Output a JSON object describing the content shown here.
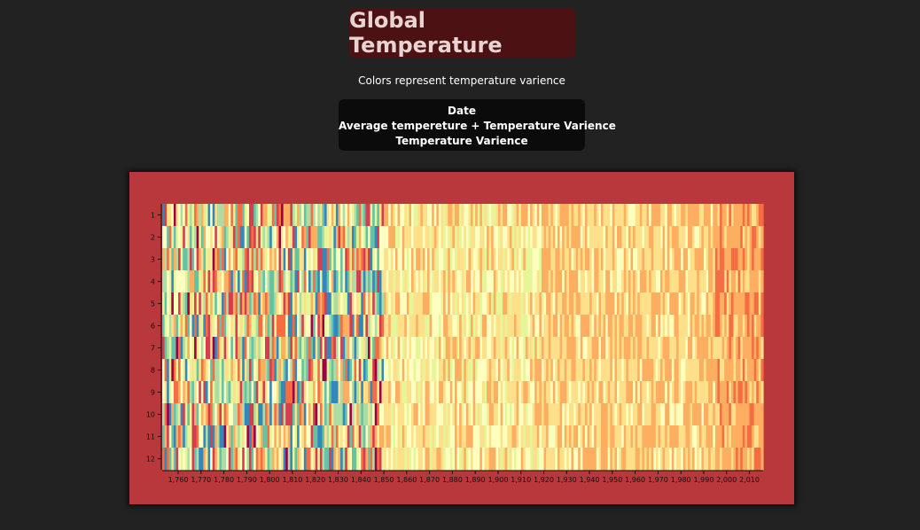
{
  "header": {
    "title": "Global Temperature",
    "subtitle": "Colors represent temperature varience"
  },
  "tooltip": {
    "line1": "Date",
    "line2": "Average tempereture + Temperature Varience",
    "line3": "Temperature Varience"
  },
  "colors": {
    "background": "#222222",
    "title_bg": "#4c1213",
    "chart_bg": "#b8383c",
    "scale": [
      "#5e4fa2",
      "#3288bd",
      "#66c2a5",
      "#abdda4",
      "#e6f598",
      "#ffffbf",
      "#fee08b",
      "#fdae61",
      "#f46d43",
      "#d53e4f",
      "#9e0142"
    ]
  },
  "chart_data": {
    "type": "heatmap",
    "title": "Global Temperature",
    "x_range": [
      1753,
      2015
    ],
    "y_categories": [
      "1",
      "2",
      "3",
      "4",
      "5",
      "6",
      "7",
      "8",
      "9",
      "10",
      "11",
      "12"
    ],
    "x_ticks": [
      "1,760",
      "1,770",
      "1,780",
      "1,790",
      "1,800",
      "1,810",
      "1,820",
      "1,830",
      "1,840",
      "1,850",
      "1,860",
      "1,870",
      "1,880",
      "1,890",
      "1,900",
      "1,910",
      "1,920",
      "1,930",
      "1,940",
      "1,950",
      "1,960",
      "1,970",
      "1,980",
      "1,990",
      "2,000",
      "2,010"
    ],
    "x_tick_values": [
      1760,
      1770,
      1780,
      1790,
      1800,
      1810,
      1820,
      1830,
      1840,
      1850,
      1860,
      1870,
      1880,
      1890,
      1900,
      1910,
      1920,
      1930,
      1940,
      1950,
      1960,
      1970,
      1980,
      1990,
      2000,
      2010
    ],
    "value_description": "monthly temperature variance, colored by scale from low (blue) to high (dark red)",
    "trend": "high volatility before 1850, mostly pale/near-zero 1850-1920, warming toward orange after 1920, strongest orange after 1995"
  }
}
